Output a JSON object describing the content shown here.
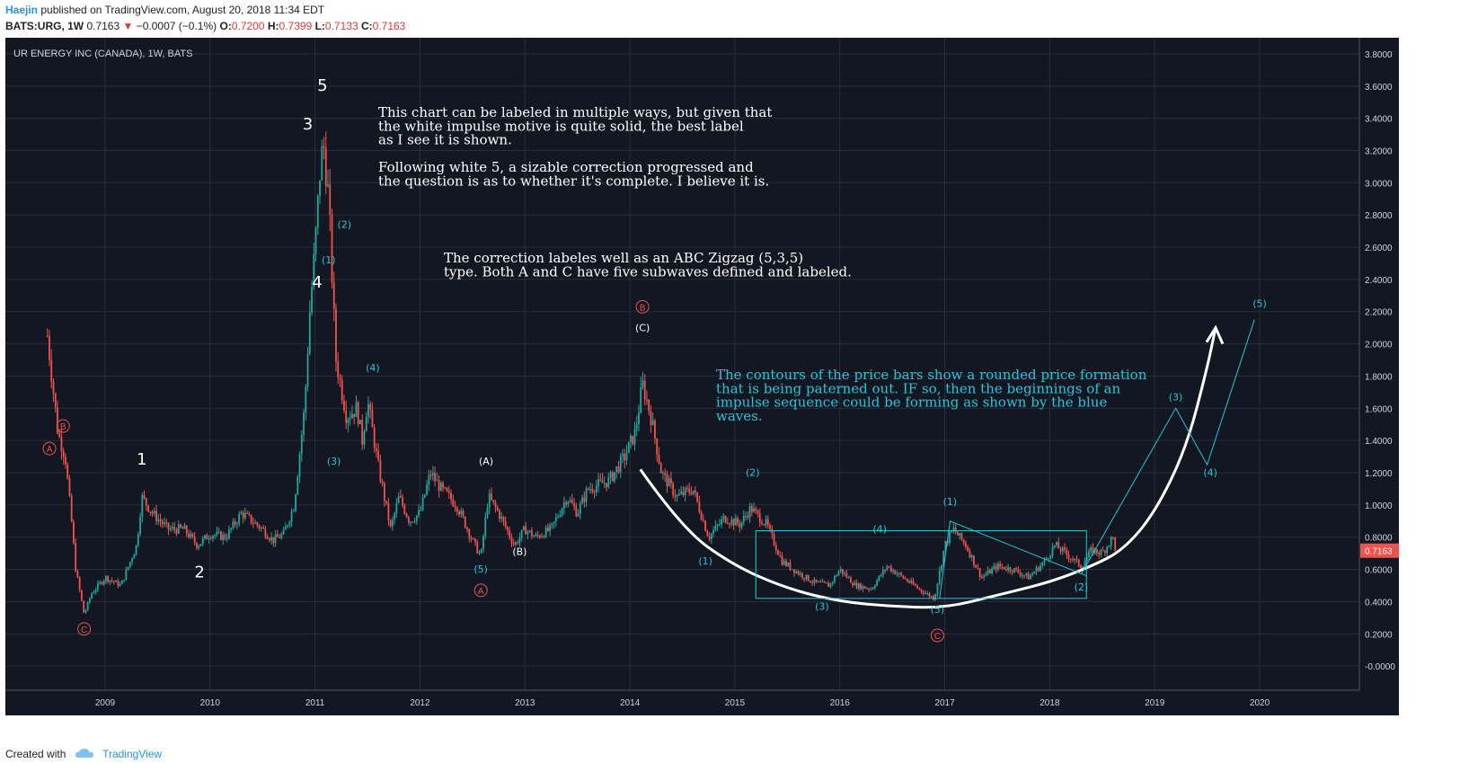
{
  "header": {
    "author": "Haejin",
    "published_text": "published on TradingView.com, August 20, 2018 11:34 EDT",
    "symbol_line": "BATS:URG, 1W",
    "last": "0.7163",
    "change": "−0.0007 (−0.1%)",
    "o_label": "O:",
    "o_value": "0.7200",
    "h_label": "H:",
    "h_value": "0.7399",
    "l_label": "L:",
    "l_value": "0.7133",
    "c_label": "C:",
    "c_value": "0.7163"
  },
  "footer": {
    "created_with": "Created with",
    "brand": "TradingView"
  },
  "colors": {
    "background": "#131722",
    "grid": "#2a2e39",
    "up": "#26a69a",
    "down": "#ef5350",
    "white_label": "#ffffff",
    "cyan": "#26c6da",
    "red_label": "#ef5350",
    "price_tag": "#ef5350"
  },
  "chart_data": {
    "type": "candlestick",
    "title": "UR ENERGY INC (CANADA), 1W, BATS",
    "x_ticks": [
      "2009",
      "2010",
      "2011",
      "2012",
      "2013",
      "2014",
      "2015",
      "2016",
      "2017",
      "2018",
      "2019",
      "2020"
    ],
    "y_ticks": [
      "3.8000",
      "3.6000",
      "3.4000",
      "3.2000",
      "3.0000",
      "2.8000",
      "2.6000",
      "2.4000",
      "2.2000",
      "2.0000",
      "1.8000",
      "1.6000",
      "1.4000",
      "1.2000",
      "1.0000",
      "0.8000",
      "0.6000",
      "0.4000",
      "0.2000",
      "-0.0000"
    ],
    "ylim": [
      -0.15,
      3.9
    ],
    "xlim": [
      2008.05,
      2020.95
    ],
    "last_price": "0.7163",
    "price_anchors": [
      [
        2008.45,
        2.05
      ],
      [
        2008.5,
        1.75
      ],
      [
        2008.55,
        1.45
      ],
      [
        2008.62,
        1.3
      ],
      [
        2008.68,
        0.9
      ],
      [
        2008.72,
        0.6
      ],
      [
        2008.8,
        0.32
      ],
      [
        2008.87,
        0.45
      ],
      [
        2009.0,
        0.55
      ],
      [
        2009.15,
        0.5
      ],
      [
        2009.3,
        0.75
      ],
      [
        2009.35,
        1.05
      ],
      [
        2009.45,
        0.95
      ],
      [
        2009.6,
        0.85
      ],
      [
        2009.75,
        0.85
      ],
      [
        2009.88,
        0.75
      ],
      [
        2010.0,
        0.82
      ],
      [
        2010.15,
        0.8
      ],
      [
        2010.3,
        0.95
      ],
      [
        2010.5,
        0.85
      ],
      [
        2010.6,
        0.78
      ],
      [
        2010.7,
        0.82
      ],
      [
        2010.8,
        1.0
      ],
      [
        2010.9,
        1.6
      ],
      [
        2010.95,
        2.2
      ],
      [
        2011.0,
        2.6
      ],
      [
        2011.05,
        3.1
      ],
      [
        2011.08,
        3.25
      ],
      [
        2011.13,
        2.9
      ],
      [
        2011.17,
        2.3
      ],
      [
        2011.2,
        1.9
      ],
      [
        2011.3,
        1.55
      ],
      [
        2011.4,
        1.6
      ],
      [
        2011.45,
        1.4
      ],
      [
        2011.5,
        1.65
      ],
      [
        2011.6,
        1.25
      ],
      [
        2011.72,
        0.85
      ],
      [
        2011.8,
        1.05
      ],
      [
        2011.9,
        0.9
      ],
      [
        2012.0,
        0.95
      ],
      [
        2012.1,
        1.2
      ],
      [
        2012.2,
        1.1
      ],
      [
        2012.35,
        1.0
      ],
      [
        2012.5,
        0.78
      ],
      [
        2012.58,
        0.68
      ],
      [
        2012.65,
        1.05
      ],
      [
        2012.75,
        0.95
      ],
      [
        2012.9,
        0.75
      ],
      [
        2013.0,
        0.85
      ],
      [
        2013.1,
        0.8
      ],
      [
        2013.25,
        0.85
      ],
      [
        2013.4,
        1.05
      ],
      [
        2013.5,
        0.95
      ],
      [
        2013.6,
        1.1
      ],
      [
        2013.8,
        1.15
      ],
      [
        2013.95,
        1.3
      ],
      [
        2014.05,
        1.45
      ],
      [
        2014.12,
        1.75
      ],
      [
        2014.2,
        1.55
      ],
      [
        2014.3,
        1.2
      ],
      [
        2014.45,
        1.05
      ],
      [
        2014.6,
        1.1
      ],
      [
        2014.75,
        0.8
      ],
      [
        2014.9,
        0.92
      ],
      [
        2015.05,
        0.88
      ],
      [
        2015.15,
        0.98
      ],
      [
        2015.3,
        0.88
      ],
      [
        2015.45,
        0.65
      ],
      [
        2015.6,
        0.58
      ],
      [
        2015.75,
        0.52
      ],
      [
        2015.9,
        0.5
      ],
      [
        2016.0,
        0.6
      ],
      [
        2016.15,
        0.5
      ],
      [
        2016.3,
        0.48
      ],
      [
        2016.45,
        0.62
      ],
      [
        2016.6,
        0.55
      ],
      [
        2016.75,
        0.48
      ],
      [
        2016.9,
        0.42
      ],
      [
        2017.0,
        0.75
      ],
      [
        2017.08,
        0.85
      ],
      [
        2017.2,
        0.75
      ],
      [
        2017.35,
        0.55
      ],
      [
        2017.5,
        0.62
      ],
      [
        2017.65,
        0.6
      ],
      [
        2017.8,
        0.55
      ],
      [
        2017.95,
        0.65
      ],
      [
        2018.05,
        0.75
      ],
      [
        2018.15,
        0.7
      ],
      [
        2018.3,
        0.62
      ],
      [
        2018.4,
        0.72
      ],
      [
        2018.5,
        0.7
      ],
      [
        2018.6,
        0.8
      ],
      [
        2018.63,
        0.7163
      ]
    ],
    "wave_labels": [
      {
        "text": "5",
        "x": 2011.07,
        "y": 3.57,
        "style": "white-big"
      },
      {
        "text": "3",
        "x": 2010.93,
        "y": 3.33,
        "style": "white-big"
      },
      {
        "text": "4",
        "x": 2011.02,
        "y": 2.35,
        "style": "white-big"
      },
      {
        "text": "1",
        "x": 2009.35,
        "y": 1.25,
        "style": "white-big"
      },
      {
        "text": "2",
        "x": 2009.9,
        "y": 0.55,
        "style": "white-big"
      },
      {
        "text": "(1)",
        "x": 2011.13,
        "y": 2.5,
        "style": "cyan"
      },
      {
        "text": "(2)",
        "x": 2011.28,
        "y": 2.72,
        "style": "cyan"
      },
      {
        "text": "(3)",
        "x": 2011.18,
        "y": 1.25,
        "style": "cyan"
      },
      {
        "text": "(4)",
        "x": 2011.55,
        "y": 1.83,
        "style": "cyan"
      },
      {
        "text": "(5)",
        "x": 2012.58,
        "y": 0.58,
        "style": "cyan"
      },
      {
        "text": "(A)",
        "x": 2012.63,
        "y": 1.25,
        "style": "white"
      },
      {
        "text": "(B)",
        "x": 2012.95,
        "y": 0.69,
        "style": "white"
      },
      {
        "text": "(C)",
        "x": 2014.12,
        "y": 2.08,
        "style": "white"
      },
      {
        "text": "(1)",
        "x": 2014.72,
        "y": 0.63,
        "style": "cyan"
      },
      {
        "text": "(2)",
        "x": 2015.17,
        "y": 1.18,
        "style": "cyan"
      },
      {
        "text": "(3)",
        "x": 2015.83,
        "y": 0.35,
        "style": "cyan"
      },
      {
        "text": "(4)",
        "x": 2016.38,
        "y": 0.83,
        "style": "cyan"
      },
      {
        "text": "(5)",
        "x": 2016.93,
        "y": 0.33,
        "style": "cyan"
      },
      {
        "text": "(1)",
        "x": 2017.05,
        "y": 1.0,
        "style": "cyan"
      },
      {
        "text": "(2)",
        "x": 2018.3,
        "y": 0.47,
        "style": "cyan"
      },
      {
        "text": "(3)",
        "x": 2019.2,
        "y": 1.65,
        "style": "cyan"
      },
      {
        "text": "(4)",
        "x": 2019.53,
        "y": 1.18,
        "style": "cyan"
      },
      {
        "text": "(5)",
        "x": 2020.0,
        "y": 2.23,
        "style": "cyan"
      }
    ],
    "circle_labels": [
      {
        "text": "B",
        "x": 2008.6,
        "y": 1.49
      },
      {
        "text": "A",
        "x": 2008.47,
        "y": 1.35
      },
      {
        "text": "C",
        "x": 2008.8,
        "y": 0.23
      },
      {
        "text": "A",
        "x": 2012.58,
        "y": 0.47
      },
      {
        "text": "B",
        "x": 2014.12,
        "y": 2.23
      },
      {
        "text": "C",
        "x": 2016.93,
        "y": 0.19
      }
    ],
    "white_curve": [
      [
        2014.1,
        1.22
      ],
      [
        2014.5,
        0.85
      ],
      [
        2015.0,
        0.62
      ],
      [
        2015.5,
        0.48
      ],
      [
        2016.0,
        0.4
      ],
      [
        2016.5,
        0.37
      ],
      [
        2017.0,
        0.36
      ],
      [
        2017.5,
        0.44
      ],
      [
        2018.0,
        0.52
      ],
      [
        2018.4,
        0.62
      ],
      [
        2018.7,
        0.72
      ],
      [
        2019.0,
        0.95
      ],
      [
        2019.3,
        1.35
      ],
      [
        2019.5,
        1.85
      ],
      [
        2019.58,
        2.1
      ]
    ],
    "projection": [
      [
        2018.3,
        0.57
      ],
      [
        2019.2,
        1.6
      ],
      [
        2019.5,
        1.25
      ],
      [
        2019.95,
        2.15
      ]
    ],
    "box_top": [
      2015.2,
      0.84,
      2018.35,
      0.42
    ],
    "channel": [
      [
        2016.95,
        0.42
      ],
      [
        2017.05,
        0.9
      ],
      [
        2018.35,
        0.56
      ]
    ],
    "annotations": {
      "text1": [
        "This chart can be labeled in multiple ways, but given that",
        "the white impulse motive is quite solid, the best label",
        "as I see it is shown.",
        "",
        "Following white 5, a sizable correction progressed and",
        "the question is as to whether it's complete. I believe it is."
      ],
      "text2": [
        "The correction labeles well as an ABC Zigzag (5,3,5)",
        "type. Both A and C have five subwaves defined and labeled."
      ],
      "text3": [
        "The contours of the price bars show a rounded price formation",
        "that is being paterned out. IF so, then the beginnings of an",
        "impulse sequence could be forming as shown by the blue",
        "waves."
      ]
    }
  }
}
